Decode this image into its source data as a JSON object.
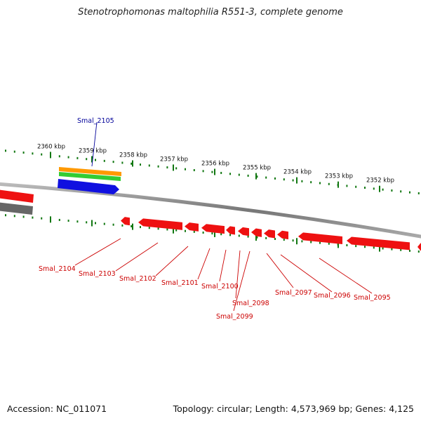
{
  "title": "Stenotrophomonas maltophilia R551-3, complete genome",
  "footer": {
    "accession": "Accession: NC_011071",
    "summary": "Topology: circular; Length: 4,573,969 bp; Genes: 4,125"
  },
  "colors": {
    "forward_gene": "#1010e0",
    "reverse_gene": "#ee1111",
    "rna_orange": "#ff9900",
    "rna_green": "#33cc33",
    "tick": "#117711",
    "backbone": "#888888",
    "label_forward": "#000099",
    "label_reverse": "#cc0000"
  },
  "ticks": [
    {
      "label": "2360 kbp"
    },
    {
      "label": "2359 kbp"
    },
    {
      "label": "2358 kbp"
    },
    {
      "label": "2357 kbp"
    },
    {
      "label": "2356 kbp"
    },
    {
      "label": "2355 kbp"
    },
    {
      "label": "2354 kbp"
    },
    {
      "label": "2353 kbp"
    },
    {
      "label": "2352 kbp"
    }
  ],
  "genes": [
    {
      "label": "Smal_2105",
      "strand": "forward"
    },
    {
      "label": "Smal_2104",
      "strand": "reverse"
    },
    {
      "label": "Smal_2103",
      "strand": "reverse"
    },
    {
      "label": "Smal_2102",
      "strand": "reverse"
    },
    {
      "label": "Smal_2101",
      "strand": "reverse"
    },
    {
      "label": "Smal_2100",
      "strand": "reverse"
    },
    {
      "label": "Smal_2098",
      "strand": "reverse"
    },
    {
      "label": "Smal_2099",
      "strand": "reverse"
    },
    {
      "label": "Smal_2097",
      "strand": "reverse"
    },
    {
      "label": "Smal_2096",
      "strand": "reverse"
    },
    {
      "label": "Smal_2095",
      "strand": "reverse"
    }
  ]
}
